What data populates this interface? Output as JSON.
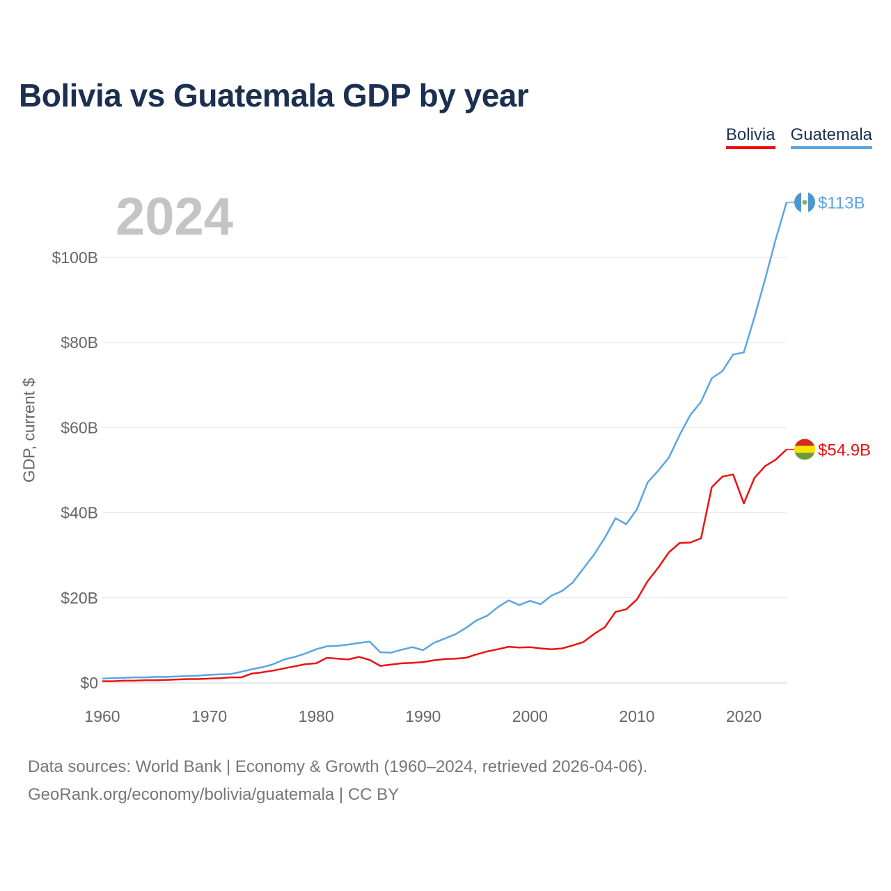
{
  "header": {
    "title": "Bolivia vs Guatemala GDP by year",
    "year": "2024"
  },
  "legend": {
    "bolivia": "Bolivia",
    "guatemala": "Guatemala"
  },
  "colors": {
    "bolivia": "#ee1111",
    "guatemala": "#5ba4e6",
    "title": "#1b3050",
    "grid": "#e6e6e6",
    "tick_text": "#666666"
  },
  "footer": {
    "source_line": "Data sources: World Bank | Economy & Growth (1960–2024, retrieved 2026-04-06).",
    "credit_line": "GeoRank.org/economy/bolivia/guatemala | CC BY"
  },
  "chart_data": {
    "type": "line",
    "title": "Bolivia vs Guatemala GDP by year",
    "xlabel": "",
    "ylabel": "GDP, current $",
    "xlim": [
      1960,
      2024
    ],
    "ylim": [
      0,
      113
    ],
    "y_unit": "billions USD",
    "grid": true,
    "legend_position": "top-right",
    "x_ticks": [
      {
        "value": 1960,
        "label": "1960"
      },
      {
        "value": 1970,
        "label": "1970"
      },
      {
        "value": 1980,
        "label": "1980"
      },
      {
        "value": 1990,
        "label": "1990"
      },
      {
        "value": 2000,
        "label": "2000"
      },
      {
        "value": 2010,
        "label": "2010"
      },
      {
        "value": 2020,
        "label": "2020"
      }
    ],
    "y_ticks": [
      {
        "value": 0,
        "label": "$0"
      },
      {
        "value": 20,
        "label": "$20B"
      },
      {
        "value": 40,
        "label": "$40B"
      },
      {
        "value": 60,
        "label": "$60B"
      },
      {
        "value": 80,
        "label": "$80B"
      },
      {
        "value": 100,
        "label": "$100B"
      }
    ],
    "x": [
      1960,
      1961,
      1962,
      1963,
      1964,
      1965,
      1966,
      1967,
      1968,
      1969,
      1970,
      1971,
      1972,
      1973,
      1974,
      1975,
      1976,
      1977,
      1978,
      1979,
      1980,
      1981,
      1982,
      1983,
      1984,
      1985,
      1986,
      1987,
      1988,
      1989,
      1990,
      1991,
      1992,
      1993,
      1994,
      1995,
      1996,
      1997,
      1998,
      1999,
      2000,
      2001,
      2002,
      2003,
      2004,
      2005,
      2006,
      2007,
      2008,
      2009,
      2010,
      2011,
      2012,
      2013,
      2014,
      2015,
      2016,
      2017,
      2018,
      2019,
      2020,
      2021,
      2022,
      2023,
      2024
    ],
    "series": [
      {
        "name": "Guatemala",
        "color": "#5ba4e6",
        "end_label": "$113B",
        "values": [
          1.0,
          1.1,
          1.2,
          1.3,
          1.3,
          1.4,
          1.4,
          1.5,
          1.6,
          1.7,
          1.9,
          2.0,
          2.1,
          2.6,
          3.2,
          3.7,
          4.4,
          5.5,
          6.1,
          6.9,
          7.9,
          8.6,
          8.7,
          9.0,
          9.4,
          9.7,
          7.2,
          7.1,
          7.8,
          8.4,
          7.7,
          9.4,
          10.4,
          11.4,
          12.9,
          14.7,
          15.8,
          17.8,
          19.4,
          18.3,
          19.3,
          18.5,
          20.5,
          21.6,
          23.6,
          26.9,
          30.2,
          34.1,
          38.7,
          37.3,
          40.8,
          47.1,
          49.9,
          53.0,
          58.3,
          63.0,
          66.1,
          71.6,
          73.3,
          77.2,
          77.7,
          86.0,
          95.0,
          104.4,
          113.0
        ]
      },
      {
        "name": "Bolivia",
        "color": "#ee1111",
        "end_label": "$54.9B",
        "values": [
          0.4,
          0.4,
          0.5,
          0.5,
          0.6,
          0.6,
          0.7,
          0.8,
          0.9,
          0.9,
          1.0,
          1.1,
          1.3,
          1.3,
          2.2,
          2.5,
          2.9,
          3.4,
          3.9,
          4.4,
          4.6,
          5.9,
          5.7,
          5.5,
          6.1,
          5.4,
          4.0,
          4.3,
          4.6,
          4.7,
          4.9,
          5.3,
          5.6,
          5.7,
          5.9,
          6.7,
          7.4,
          7.9,
          8.5,
          8.3,
          8.4,
          8.1,
          7.9,
          8.1,
          8.8,
          9.6,
          11.5,
          13.1,
          16.7,
          17.3,
          19.6,
          23.9,
          27.1,
          30.7,
          32.9,
          33.0,
          34.0,
          46.0,
          48.5,
          49.0,
          42.2,
          48.2,
          51.0,
          52.5,
          54.9
        ]
      }
    ]
  }
}
